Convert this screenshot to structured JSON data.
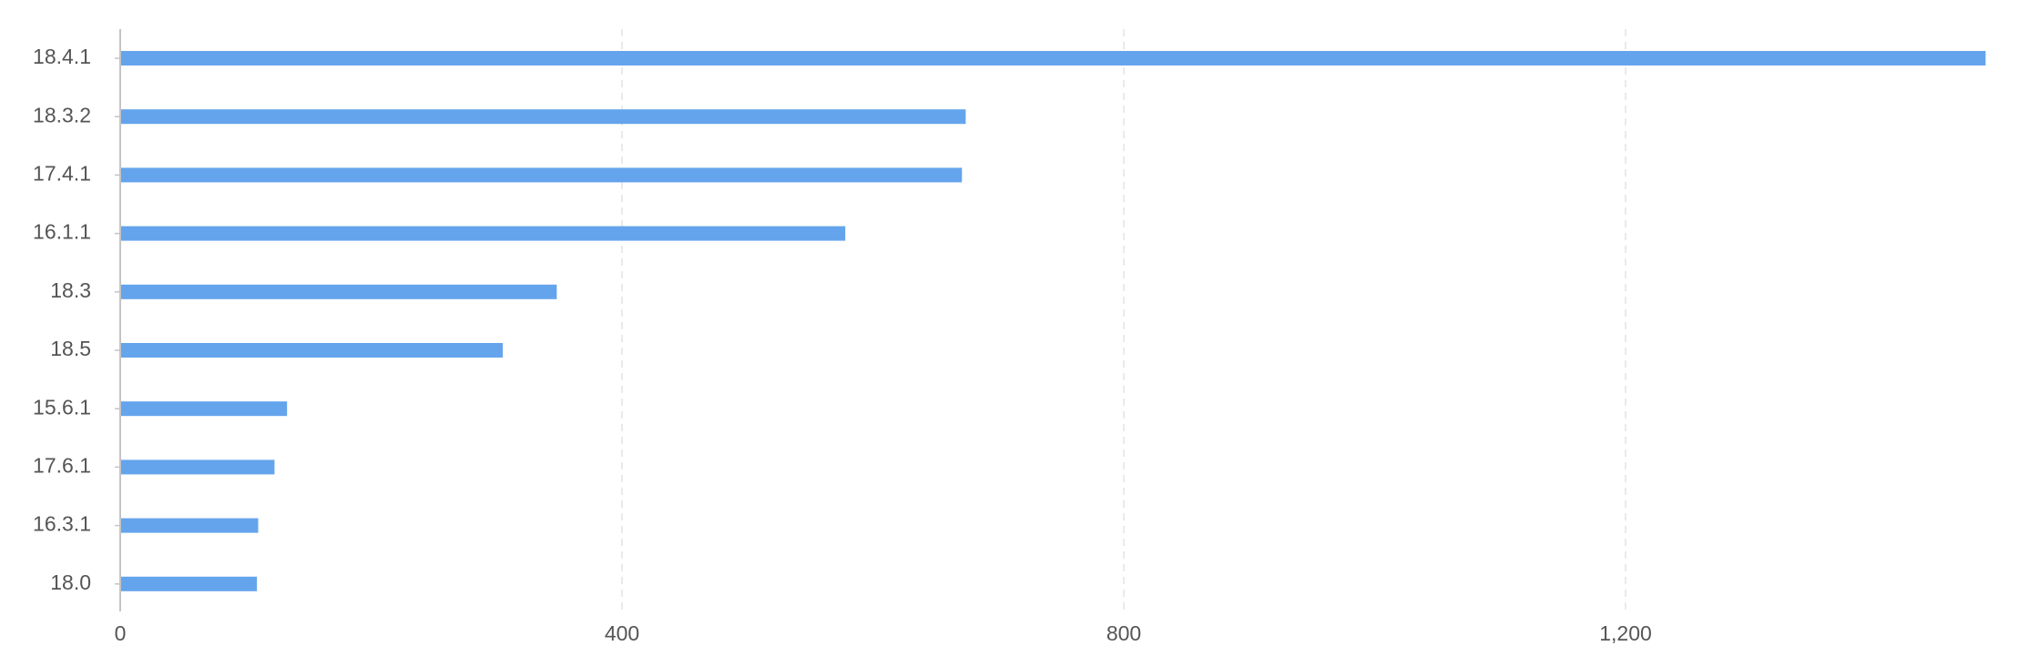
{
  "chart_data": {
    "type": "bar",
    "orientation": "horizontal",
    "title": "",
    "xlabel": "",
    "ylabel": "",
    "categories": [
      "18.4.1",
      "18.3.2",
      "17.4.1",
      "16.1.1",
      "18.3",
      "18.5",
      "15.6.1",
      "17.6.1",
      "16.3.1",
      "18.0"
    ],
    "series": [
      {
        "values": [
          1487,
          674,
          671,
          578,
          348,
          305,
          133,
          123,
          110,
          109
        ],
        "color": "#64a4ec"
      }
    ],
    "xlim": [
      0,
      1500
    ],
    "x_ticks": [
      0,
      400,
      800,
      1200
    ],
    "x_tick_labels": [
      "0",
      "400",
      "800",
      "1,200"
    ],
    "grid": "vertical dashed",
    "legend": "none"
  }
}
